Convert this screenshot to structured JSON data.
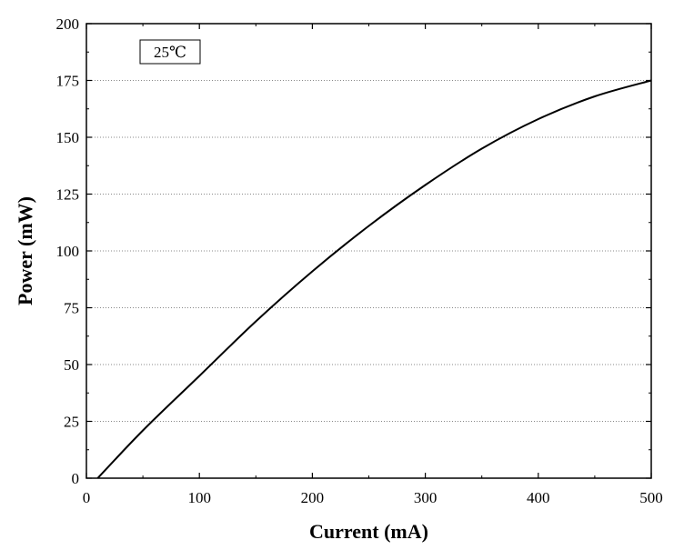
{
  "chart_data": {
    "type": "line",
    "title": "",
    "xlabel": "Current (mA)",
    "ylabel": "Power (mW)",
    "xlim": [
      0,
      500
    ],
    "ylim": [
      0,
      200
    ],
    "xticks": [
      0,
      100,
      200,
      300,
      400,
      500
    ],
    "yticks": [
      0,
      25,
      50,
      75,
      100,
      125,
      150,
      175,
      200
    ],
    "grid": "horizontal dotted",
    "annotation": "25℃",
    "series": [
      {
        "color": "#000000",
        "x": [
          10,
          50,
          100,
          150,
          200,
          250,
          300,
          350,
          400,
          450,
          500
        ],
        "y": [
          0,
          21,
          45,
          69,
          91,
          111,
          129,
          145,
          158,
          168,
          175
        ]
      }
    ]
  }
}
